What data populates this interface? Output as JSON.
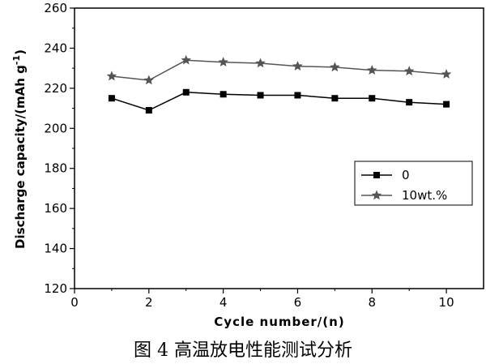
{
  "caption": "图 4    高温放电性能测试分析",
  "chart_data": {
    "type": "line",
    "title": "",
    "xlabel": "Cycle number/(n)",
    "ylabel": "Discharge capacity/(mAh g",
    "ylabel_sup": "-1",
    "ylabel_close": ")",
    "xlim": [
      0,
      11
    ],
    "ylim": [
      120,
      260
    ],
    "x_ticks": [
      "0",
      "2",
      "4",
      "6",
      "8",
      "10"
    ],
    "y_ticks": [
      "120",
      "140",
      "160",
      "180",
      "200",
      "220",
      "240",
      "260"
    ],
    "x": [
      1,
      2,
      3,
      4,
      5,
      6,
      7,
      8,
      9,
      10
    ],
    "grid": false,
    "legend_position": "right",
    "series": [
      {
        "name": "0",
        "marker": "square",
        "color": "#000000",
        "values": [
          215,
          209,
          218,
          217,
          216.5,
          216.5,
          215,
          215,
          213,
          212
        ]
      },
      {
        "name": "10wt.%",
        "marker": "star",
        "color": "#555555",
        "values": [
          226,
          224,
          234,
          233,
          232.5,
          231,
          230.5,
          229,
          228.5,
          227
        ]
      }
    ]
  }
}
